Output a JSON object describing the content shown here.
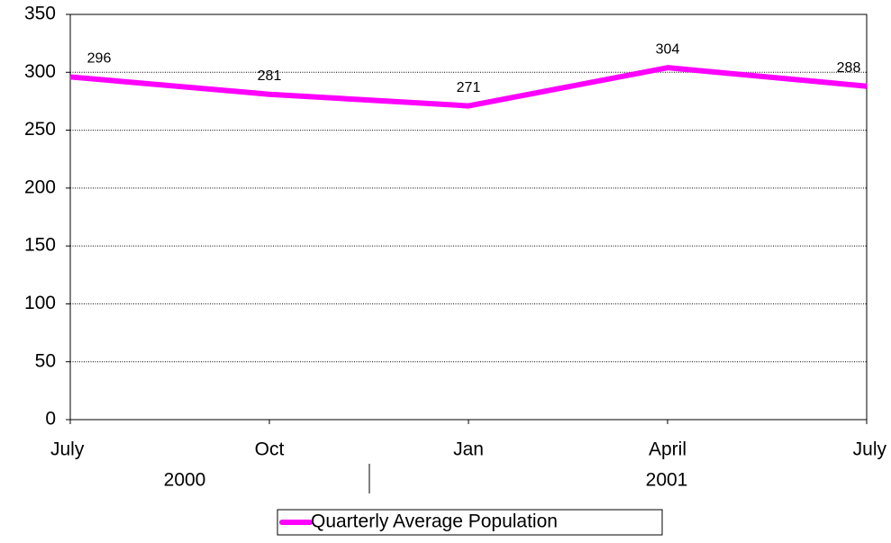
{
  "chart_data": {
    "type": "line",
    "categories": [
      "July",
      "Oct",
      "Jan",
      "April",
      "July"
    ],
    "category_groups": [
      "2000",
      "2001"
    ],
    "series": [
      {
        "name": "Quarterly Average Population",
        "color": "#ff00ff",
        "values": [
          296,
          281,
          271,
          304,
          288
        ]
      }
    ],
    "ylim": [
      0,
      350
    ],
    "yticks": [
      0,
      50,
      100,
      150,
      200,
      250,
      300,
      350
    ],
    "grid": true,
    "legend": "bottom"
  }
}
